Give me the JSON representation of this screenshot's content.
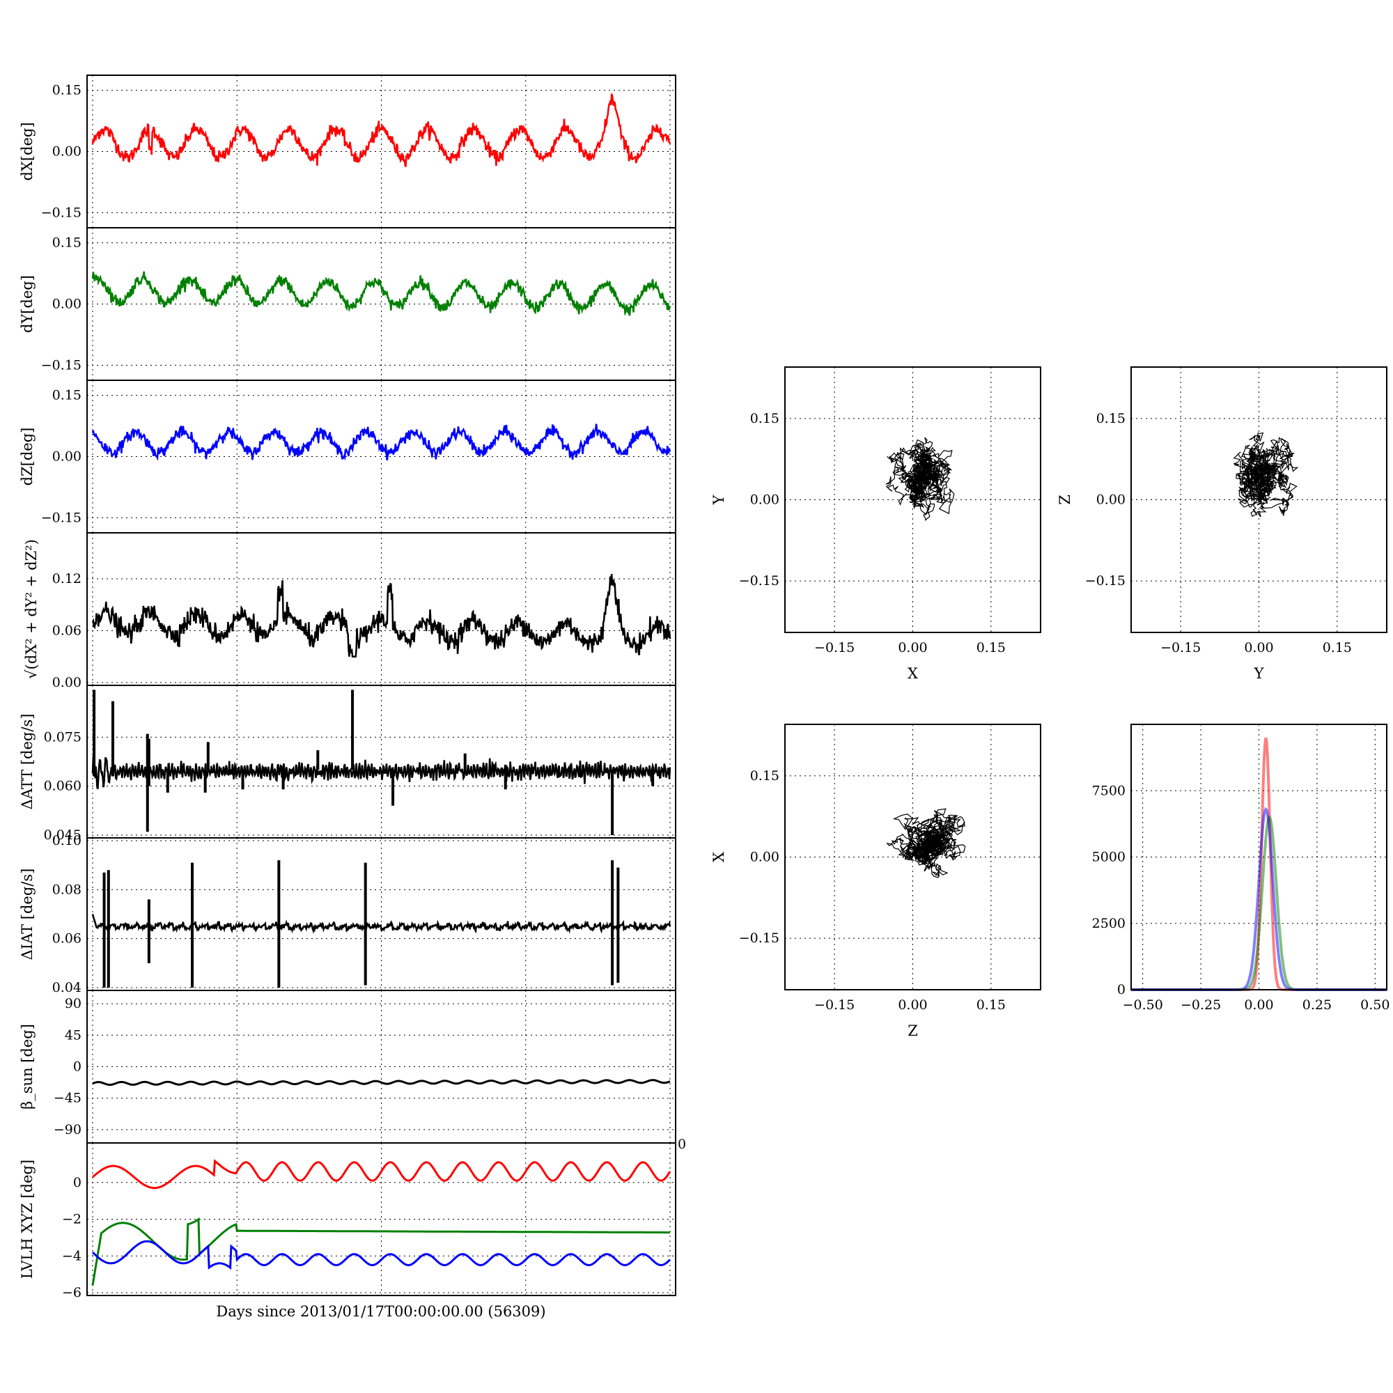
{
  "colors": {
    "x": "#ff0000",
    "y": "#008000",
    "z": "#0000ff",
    "k": "#000000"
  },
  "timeseries": {
    "xlabel": "Days since 2013/01/17T00:00:00.00 (56309)",
    "xlim": [
      0,
      20
    ],
    "panels": [
      {
        "id": "dx",
        "ylabel": "dX[deg]",
        "ylim": [
          -0.18,
          0.18
        ],
        "ticks": [
          "0.15",
          "0.00",
          "−0.15"
        ],
        "tick_values": [
          0.15,
          0.0,
          -0.15
        ],
        "color": "#ff0000"
      },
      {
        "id": "dy",
        "ylabel": "dY[deg]",
        "ylim": [
          -0.18,
          0.18
        ],
        "ticks": [
          "0.15",
          "0.00",
          "−0.15"
        ],
        "tick_values": [
          0.15,
          0.0,
          -0.15
        ],
        "color": "#008000"
      },
      {
        "id": "dz",
        "ylabel": "dZ[deg]",
        "ylim": [
          -0.18,
          0.18
        ],
        "ticks": [
          "0.15",
          "0.00",
          "−0.15"
        ],
        "tick_values": [
          0.15,
          0.0,
          -0.15
        ],
        "color": "#0000ff"
      },
      {
        "id": "norm",
        "ylabel": "√(dX² + dY² + dZ²)",
        "ylim": [
          0.0,
          0.17
        ],
        "ticks": [
          "0.12",
          "0.06",
          "0.00"
        ],
        "tick_values": [
          0.12,
          0.06,
          0.0
        ],
        "color": "#000000"
      },
      {
        "id": "datt",
        "ylabel": "ΔATT [deg/s]",
        "ylim": [
          0.045,
          0.09
        ],
        "ticks": [
          "0.075",
          "0.060",
          "0.045"
        ],
        "tick_values": [
          0.075,
          0.06,
          0.045
        ],
        "color": "#000000"
      },
      {
        "id": "diat",
        "ylabel": "ΔIAT [deg/s]",
        "ylim": [
          0.04,
          0.1
        ],
        "ticks": [
          "0.10",
          "0.08",
          "0.06",
          "0.04"
        ],
        "tick_values": [
          0.1,
          0.08,
          0.06,
          0.04
        ],
        "color": "#000000"
      },
      {
        "id": "beta",
        "ylabel": "β_sun [deg]",
        "ylim": [
          -105,
          105
        ],
        "ticks": [
          "90",
          "45",
          "0",
          "−45",
          "−90"
        ],
        "tick_values": [
          90,
          45,
          0,
          -45,
          -90
        ],
        "color": "#000000"
      },
      {
        "id": "lvlh",
        "ylabel": "LVLH XYZ [deg]",
        "ylim": [
          -6,
          2
        ],
        "ticks": [
          "0",
          "−2",
          "−4",
          "−6"
        ],
        "tick_values": [
          0,
          -2,
          -4,
          -6
        ],
        "color": "#000000"
      }
    ],
    "overflow_tick": "0"
  },
  "scatter": [
    {
      "id": "xy",
      "xlabel": "X",
      "ylabel": "Y",
      "ticks": [
        "−0.15",
        "0.00",
        "0.15"
      ],
      "center": [
        0.02,
        0.04
      ],
      "spread": 0.03
    },
    {
      "id": "yz",
      "xlabel": "Y",
      "ylabel": "Z",
      "ticks": [
        "−0.15",
        "0.00",
        "0.15"
      ],
      "center": [
        0.01,
        0.04
      ],
      "spread": 0.03
    },
    {
      "id": "zx",
      "xlabel": "Z",
      "ylabel": "X",
      "ticks": [
        "−0.15",
        "0.00",
        "0.15"
      ],
      "center": [
        0.03,
        0.02
      ],
      "spread": 0.03
    }
  ],
  "histogram": {
    "xticks": [
      "−0.50",
      "−0.25",
      "0.00",
      "0.25",
      "0.50"
    ],
    "yticks": [
      "7500",
      "5000",
      "2500",
      "0"
    ],
    "ylim": [
      0,
      10000
    ],
    "xlim": [
      -0.55,
      0.55
    ],
    "series": [
      {
        "color": "#ff0000",
        "peak_x": 0.03,
        "peak_y": 9500,
        "width": 0.018
      },
      {
        "color": "#008000",
        "peak_x": 0.045,
        "peak_y": 6500,
        "width": 0.03
      },
      {
        "color": "#0000ff",
        "peak_x": 0.03,
        "peak_y": 6800,
        "width": 0.03
      }
    ]
  }
}
